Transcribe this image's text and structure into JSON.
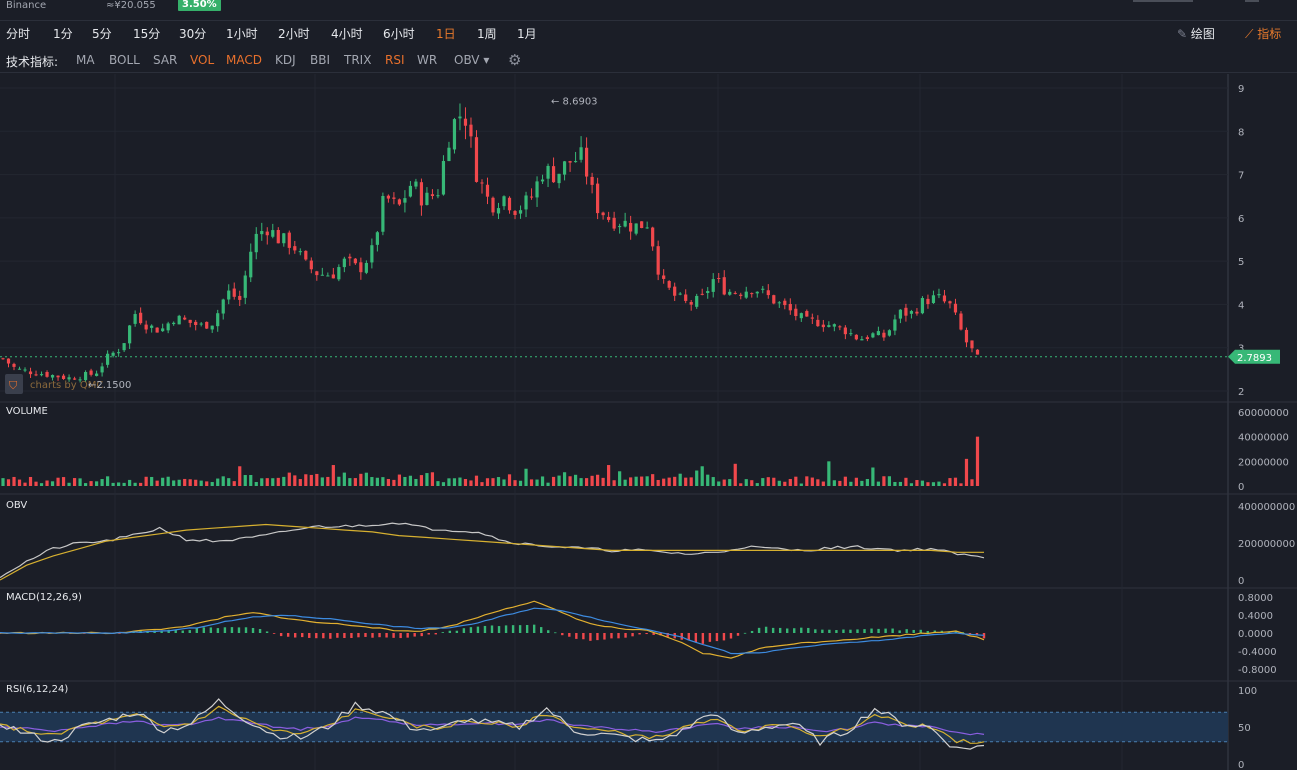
{
  "topbar": {
    "exchange": "Binance",
    "price": "≈¥20.055",
    "change": "3.50%"
  },
  "intervals": [
    {
      "label": "分时",
      "active": false
    },
    {
      "label": "1分",
      "active": false
    },
    {
      "label": "5分",
      "active": false
    },
    {
      "label": "15分",
      "active": false
    },
    {
      "label": "30分",
      "active": false
    },
    {
      "label": "1小时",
      "active": false
    },
    {
      "label": "2小时",
      "active": false
    },
    {
      "label": "4小时",
      "active": false
    },
    {
      "label": "6小时",
      "active": false
    },
    {
      "label": "1日",
      "active": true
    },
    {
      "label": "1周",
      "active": false
    },
    {
      "label": "1月",
      "active": false
    }
  ],
  "tools": {
    "draw_label": "绘图",
    "indicator_label": "指标"
  },
  "indicator_bar": {
    "label": "技术指标:",
    "items": [
      {
        "label": "MA",
        "on": false
      },
      {
        "label": "BOLL",
        "on": false
      },
      {
        "label": "SAR",
        "on": false
      },
      {
        "label": "VOL",
        "on": true
      },
      {
        "label": "MACD",
        "on": true
      },
      {
        "label": "KDJ",
        "on": false
      },
      {
        "label": "BBI",
        "on": false
      },
      {
        "label": "TRIX",
        "on": false
      },
      {
        "label": "RSI",
        "on": true
      },
      {
        "label": "WR",
        "on": false
      },
      {
        "label": "OBV",
        "on": false
      }
    ]
  },
  "watermark": "charts by QMC",
  "colors": {
    "up": "#37b877",
    "down": "#f0484c",
    "accent": "#e87a2c",
    "bg": "#1b1e27"
  },
  "chart_data": [
    {
      "type": "candlestick",
      "ylim": [
        2,
        9
      ],
      "yticks": [
        "9",
        "8",
        "7",
        "6",
        "5",
        "4",
        "3",
        "2"
      ],
      "last_price": "2.7893",
      "max_label": "8.6903",
      "min_label": "2.1500",
      "path_values": [
        2.75,
        2.5,
        2.45,
        2.4,
        2.35,
        2.3,
        2.35,
        2.4,
        2.8,
        3.0,
        3.8,
        3.5,
        3.4,
        3.7,
        3.6,
        3.5,
        3.6,
        4.3,
        4.1,
        5.5,
        5.8,
        5.5,
        5.4,
        4.9,
        4.7,
        4.7,
        5.0,
        4.8,
        5.2,
        6.5,
        6.2,
        6.8,
        6.4,
        6.6,
        8.1,
        8.5,
        7.0,
        6.3,
        6.5,
        6.2,
        6.4,
        7.1,
        7.0,
        7.3,
        7.4,
        6.3,
        6.0,
        5.9,
        5.8,
        5.9,
        4.5,
        4.2,
        4.0,
        4.1,
        4.6,
        4.3,
        4.3,
        4.4,
        4.2,
        4.0,
        3.8,
        3.6,
        3.6,
        3.5,
        3.4,
        3.2,
        3.3,
        3.25,
        3.8,
        3.8,
        4.1,
        4.15,
        3.95,
        3.2,
        2.75
      ]
    },
    {
      "type": "bar",
      "title": "VOLUME",
      "ylim": [
        0,
        60000000
      ],
      "yticks": [
        "60000000",
        "40000000",
        "20000000",
        "0"
      ],
      "spikes": [
        [
          43,
          16
        ],
        [
          60,
          17
        ],
        [
          95,
          14
        ],
        [
          110,
          17
        ],
        [
          127,
          16
        ],
        [
          133,
          18
        ],
        [
          150,
          20
        ],
        [
          158,
          15
        ],
        [
          175,
          22
        ],
        [
          177,
          40
        ]
      ]
    },
    {
      "type": "line",
      "title": "OBV",
      "ylim": [
        0,
        400000000
      ],
      "yticks": [
        "400000000",
        "200000000",
        "0"
      ],
      "obv": [
        2,
        10,
        17,
        20,
        21,
        24,
        28,
        22,
        21,
        22,
        24,
        27,
        29,
        29,
        30,
        31,
        28,
        27,
        26,
        21,
        19,
        18,
        17,
        16,
        16,
        15,
        14,
        15,
        18,
        17,
        16,
        17,
        18,
        17,
        16,
        17,
        14,
        12
      ],
      "obv_ma": [
        0,
        8,
        13,
        17,
        21,
        23,
        25,
        27,
        28,
        29,
        30,
        29,
        28,
        27,
        26,
        24,
        23,
        22,
        21,
        20,
        19,
        18,
        17,
        16,
        16,
        16,
        16,
        16,
        16,
        16,
        16,
        16,
        16,
        16,
        16,
        16,
        15,
        15
      ]
    },
    {
      "type": "line",
      "title": "MACD(12,26,9)",
      "ylim": [
        -0.8,
        0.8
      ],
      "yticks": [
        "0.8000",
        "0.4000",
        "0.0000",
        "-0.4000",
        "-0.8000"
      ],
      "dif": [
        0,
        0,
        0,
        0,
        0,
        0.05,
        0.1,
        0.2,
        0.35,
        0.45,
        0.35,
        0.25,
        0.2,
        0.15,
        0.05,
        0.05,
        0.15,
        0.35,
        0.55,
        0.7,
        0.45,
        0.2,
        0.1,
        0.05,
        -0.15,
        -0.45,
        -0.55,
        -0.35,
        -0.25,
        -0.2,
        -0.15,
        -0.1,
        -0.05,
        0.0,
        0.05,
        -0.15
      ],
      "dea": [
        0,
        0,
        0,
        0,
        0,
        0.02,
        0.05,
        0.12,
        0.25,
        0.35,
        0.4,
        0.35,
        0.3,
        0.22,
        0.15,
        0.1,
        0.12,
        0.22,
        0.4,
        0.55,
        0.5,
        0.35,
        0.2,
        0.08,
        -0.05,
        -0.25,
        -0.45,
        -0.45,
        -0.35,
        -0.28,
        -0.22,
        -0.18,
        -0.12,
        -0.05,
        0.0,
        -0.05
      ]
    },
    {
      "type": "line",
      "title": "RSI(6,12,24)",
      "ylim": [
        0,
        100
      ],
      "yticks": [
        "100",
        "50",
        "0"
      ],
      "band": [
        30,
        70
      ],
      "rsi6": [
        55,
        40,
        30,
        50,
        60,
        70,
        45,
        55,
        85,
        60,
        40,
        35,
        50,
        80,
        70,
        50,
        45,
        60,
        55,
        50,
        75,
        45,
        40,
        35,
        30,
        45,
        70,
        40,
        50,
        55,
        30,
        45,
        75,
        55,
        50,
        20,
        25
      ],
      "rsi12": [
        52,
        45,
        38,
        52,
        58,
        66,
        50,
        55,
        76,
        60,
        45,
        40,
        52,
        72,
        66,
        52,
        48,
        58,
        55,
        52,
        68,
        50,
        45,
        40,
        36,
        48,
        62,
        45,
        50,
        52,
        36,
        48,
        66,
        55,
        50,
        30,
        30
      ],
      "rsi24": [
        50,
        48,
        45,
        50,
        54,
        58,
        52,
        54,
        62,
        58,
        50,
        47,
        52,
        62,
        60,
        54,
        52,
        55,
        55,
        54,
        60,
        52,
        50,
        46,
        44,
        48,
        55,
        48,
        50,
        50,
        44,
        48,
        56,
        52,
        50,
        42,
        40
      ]
    }
  ]
}
